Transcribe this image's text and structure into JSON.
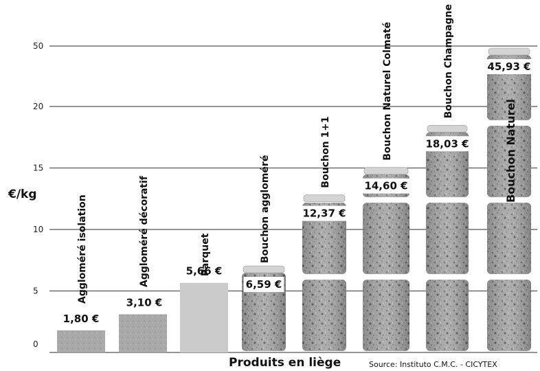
{
  "chart_data": {
    "type": "bar",
    "categories": [
      "Aggloméré isolation",
      "Aggloméré décoratif",
      "Parquet",
      "Bouchon aggloméré",
      "Bouchon 1+1",
      "Bouchon Naturel Colmaté",
      "Bouchon Champagne",
      "Bouchon Naturel"
    ],
    "values": [
      1.8,
      3.1,
      5.66,
      6.59,
      12.37,
      14.6,
      18.03,
      45.93
    ],
    "value_labels": [
      "1,80 €",
      "3,10 €",
      "5,66 €",
      "6,59 €",
      "12,37 €",
      "14,60 €",
      "18,03 €",
      "45,93 €"
    ],
    "ylabel": "€/kg",
    "xlabel": "Produits  en liège",
    "source": "Source: Instituto C.M.C. - CICYTEX",
    "y_ticks": [
      "0",
      "5",
      "10",
      "15",
      "20",
      "50"
    ],
    "y_tick_values": [
      0,
      5,
      10,
      15,
      20,
      50
    ],
    "y_scale": "broken axis: linear 0–20, compressed 20–50",
    "grid": true,
    "colors": {
      "grid": "#555555",
      "plain_bar": "#9b9b9b",
      "cork_light": "#d4d4d4",
      "cork_dark": "#7d7d7d"
    }
  }
}
